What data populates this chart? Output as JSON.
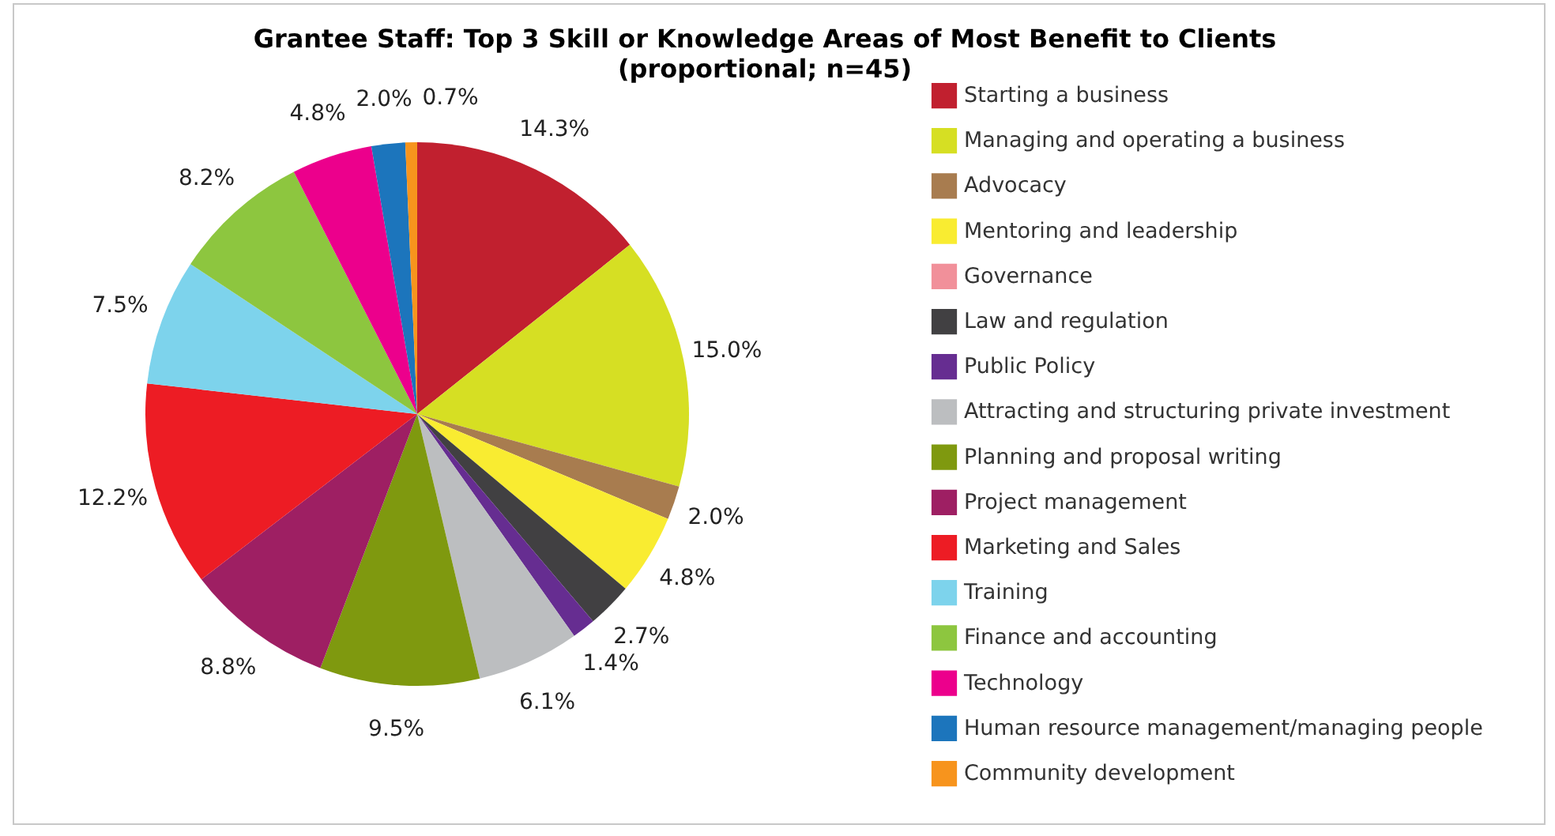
{
  "chart_data": {
    "type": "pie",
    "title": "Grantee Staff: Top 3 Skill or Knowledge Areas of Most Benefit to Clients",
    "subtitle": "(proportional; n=45)",
    "categories": [
      "Starting a business",
      "Managing and operating a business",
      "Advocacy",
      "Mentoring and leadership",
      "Governance",
      "Law and regulation",
      "Public Policy",
      "Attracting and structuring private investment",
      "Planning and proposal writing",
      "Project management",
      "Marketing and Sales",
      "Training",
      "Finance and accounting",
      "Technology",
      "Human resource management/managing people",
      "Community development"
    ],
    "values": [
      14.3,
      15.0,
      2.0,
      4.8,
      0,
      2.7,
      1.4,
      6.1,
      9.5,
      8.8,
      12.2,
      7.5,
      8.2,
      4.8,
      2.0,
      0.7
    ],
    "value_labels": [
      "14.3%",
      "15.0%",
      "2.0%",
      "4.8%",
      null,
      "2.7%",
      "1.4%",
      "6.1%",
      "9.5%",
      "8.8%",
      "12.2%",
      "7.5%",
      "8.2%",
      "4.8%",
      "2.0%",
      "0.7%"
    ],
    "colors": [
      "#c1202f",
      "#d6df23",
      "#a87c4f",
      "#f9ec31",
      "#f1909a",
      "#414042",
      "#662d91",
      "#bcbec0",
      "#7f990f",
      "#9e1f63",
      "#ed1c24",
      "#7dd3ec",
      "#8dc63f",
      "#ec008c",
      "#1c75bc",
      "#f7941d"
    ],
    "legend": "right"
  }
}
